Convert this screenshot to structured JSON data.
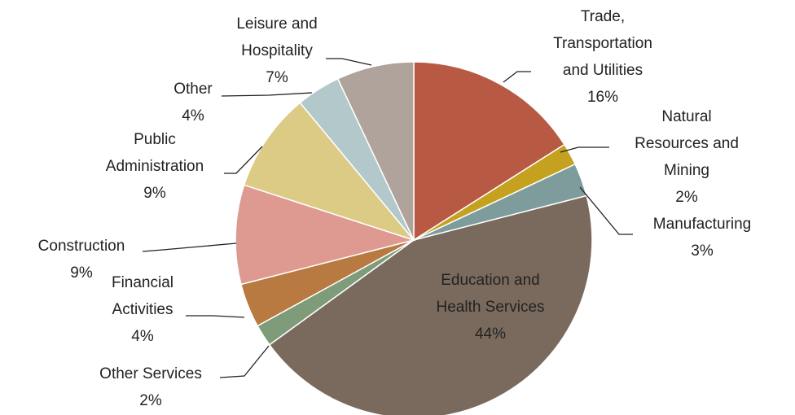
{
  "chart_data": {
    "type": "pie",
    "categories": [
      "Trade, Transportation and Utilities",
      "Natural Resources and Mining",
      "Manufacturing",
      "Education and Health Services",
      "Other Services",
      "Financial Activities",
      "Construction",
      "Public Administration",
      "Other",
      "Leisure and Hospitality"
    ],
    "values": [
      16,
      2,
      3,
      44,
      2,
      4,
      9,
      9,
      4,
      7
    ],
    "value_labels": [
      "16%",
      "2%",
      "3%",
      "44%",
      "2%",
      "4%",
      "9%",
      "9%",
      "4%",
      "7%"
    ],
    "colors": [
      "#b85a43",
      "#c4a11e",
      "#7f9c9c",
      "#7a6a5e",
      "#7f9c7a",
      "#b87a40",
      "#de9a90",
      "#dccb85",
      "#b3c8cb",
      "#b0a39c"
    ]
  }
}
